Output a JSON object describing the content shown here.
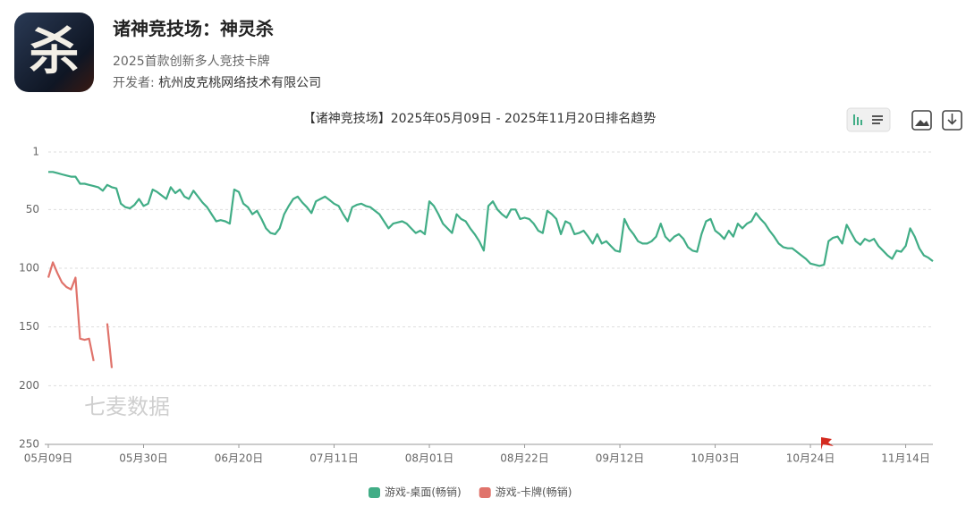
{
  "header": {
    "icon_text": "杀",
    "title": "诸神竞技场：神灵杀",
    "subtitle": "2025首款创新多人竞技卡牌",
    "developer_label": "开发者:",
    "developer": "杭州皮克桃网络技术有限公司"
  },
  "watermark": "七麦数据",
  "chart_data": {
    "type": "line",
    "title": "【诸神竞技场】2025年05月09日 - 2025年11月20日排名趋势",
    "categories": [
      "05月09日",
      null,
      null,
      null,
      null,
      null,
      null,
      null,
      null,
      null,
      null,
      null,
      null,
      null,
      null,
      null,
      null,
      null,
      null,
      null,
      null,
      "05月30日",
      null,
      null,
      null,
      null,
      null,
      null,
      null,
      null,
      null,
      null,
      null,
      null,
      null,
      null,
      null,
      null,
      null,
      null,
      null,
      null,
      "06月20日",
      null,
      null,
      null,
      null,
      null,
      null,
      null,
      null,
      null,
      null,
      null,
      null,
      null,
      null,
      null,
      null,
      null,
      null,
      null,
      null,
      "07月11日",
      null,
      null,
      null,
      null,
      null,
      null,
      null,
      null,
      null,
      null,
      null,
      null,
      null,
      null,
      null,
      null,
      null,
      null,
      null,
      null,
      "08月01日",
      null,
      null,
      null,
      null,
      null,
      null,
      null,
      null,
      null,
      null,
      null,
      null,
      null,
      null,
      null,
      null,
      null,
      null,
      null,
      null,
      "08月22日",
      null,
      null,
      null,
      null,
      null,
      null,
      null,
      null,
      null,
      null,
      null,
      null,
      null,
      null,
      null,
      null,
      null,
      null,
      null,
      null,
      "09月12日",
      null,
      null,
      null,
      null,
      null,
      null,
      null,
      null,
      null,
      null,
      null,
      null,
      null,
      null,
      null,
      null,
      null,
      null,
      null,
      null,
      "10月03日",
      null,
      null,
      null,
      null,
      null,
      null,
      null,
      null,
      null,
      null,
      null,
      null,
      null,
      null,
      null,
      null,
      null,
      null,
      null,
      null,
      "10月24日",
      null,
      null,
      null,
      null,
      null,
      null,
      null,
      null,
      null,
      null,
      null,
      null,
      null,
      null,
      null,
      null,
      null,
      null,
      null,
      null,
      "11月14日",
      null,
      null,
      null,
      null,
      null,
      null
    ],
    "series": [
      {
        "name": "游戏-桌面(畅销)",
        "color": "#41ad86",
        "values": [
          18,
          18,
          19,
          20,
          21,
          22,
          22,
          28,
          28,
          29,
          30,
          31,
          34,
          29,
          31,
          32,
          45,
          48,
          49,
          46,
          41,
          47,
          45,
          33,
          35,
          38,
          41,
          31,
          36,
          33,
          39,
          41,
          34,
          39,
          44,
          48,
          54,
          60,
          59,
          60,
          62,
          33,
          35,
          45,
          48,
          54,
          51,
          58,
          66,
          70,
          71,
          66,
          54,
          47,
          41,
          39,
          44,
          48,
          53,
          43,
          41,
          39,
          42,
          45,
          47,
          54,
          60,
          48,
          46,
          45,
          47,
          48,
          51,
          54,
          60,
          66,
          62,
          61,
          60,
          62,
          66,
          70,
          68,
          71,
          43,
          47,
          54,
          62,
          66,
          70,
          54,
          58,
          60,
          66,
          71,
          77,
          85,
          47,
          43,
          50,
          54,
          57,
          50,
          50,
          58,
          57,
          58,
          62,
          68,
          70,
          51,
          54,
          58,
          71,
          60,
          62,
          71,
          70,
          68,
          73,
          79,
          71,
          79,
          77,
          81,
          85,
          86,
          58,
          66,
          71,
          77,
          79,
          79,
          77,
          73,
          62,
          73,
          77,
          73,
          71,
          75,
          82,
          85,
          86,
          71,
          60,
          58,
          68,
          71,
          75,
          68,
          73,
          62,
          66,
          62,
          60,
          53,
          58,
          62,
          68,
          73,
          79,
          82,
          83,
          83,
          86,
          89,
          92,
          96,
          97,
          98,
          97,
          77,
          74,
          73,
          79,
          63,
          70,
          77,
          80,
          75,
          77,
          75,
          81,
          85,
          89,
          92,
          85,
          86,
          81,
          66,
          73,
          83,
          89,
          91,
          94
        ]
      },
      {
        "name": "游戏-卡牌(畅销)",
        "color": "#e0736b",
        "values": [
          108,
          95,
          104,
          112,
          116,
          118,
          108,
          160,
          161,
          160,
          179,
          null,
          null,
          147,
          185,
          null,
          null,
          null,
          null,
          null,
          null,
          null,
          null,
          null,
          null,
          null,
          null,
          null,
          null,
          null,
          null,
          null,
          null,
          null,
          null,
          null,
          null,
          null,
          null,
          null,
          null,
          null,
          null,
          null,
          null,
          null,
          null,
          null,
          null,
          null,
          null,
          null,
          null,
          null,
          null,
          null,
          null,
          null,
          null,
          null,
          null,
          null,
          null,
          null,
          null,
          null,
          null,
          null,
          null,
          null,
          null,
          null,
          null,
          null,
          null,
          null,
          null,
          null,
          null,
          null,
          null,
          null,
          null,
          null,
          null,
          null,
          null,
          null,
          null,
          null,
          null,
          null,
          null,
          null,
          null,
          null,
          null,
          null,
          null,
          null,
          null,
          null,
          null,
          null,
          null,
          null,
          null,
          null,
          null,
          null,
          null,
          null,
          null,
          null,
          null,
          null,
          null,
          null,
          null,
          null,
          null,
          null,
          null,
          null,
          null,
          null,
          null,
          null,
          null,
          null,
          null,
          null,
          null,
          null,
          null,
          null,
          null,
          null,
          null,
          null,
          null,
          null,
          null,
          null,
          null,
          null,
          null,
          null,
          null,
          null,
          null,
          null,
          null,
          null,
          null,
          null,
          null,
          null,
          null,
          null,
          null,
          null,
          null,
          null,
          null,
          null,
          null,
          null,
          null,
          null,
          null,
          null,
          null,
          null,
          null,
          null,
          null,
          null,
          null,
          null,
          null,
          null,
          null,
          null,
          null,
          null,
          null,
          null,
          null,
          null,
          null,
          null,
          null,
          null,
          null,
          null
        ]
      }
    ],
    "ylim": [
      1,
      250
    ],
    "yticks": [
      1,
      50,
      100,
      150,
      200,
      250
    ],
    "y_inverted": true,
    "grid": true,
    "legend": "bottom"
  }
}
